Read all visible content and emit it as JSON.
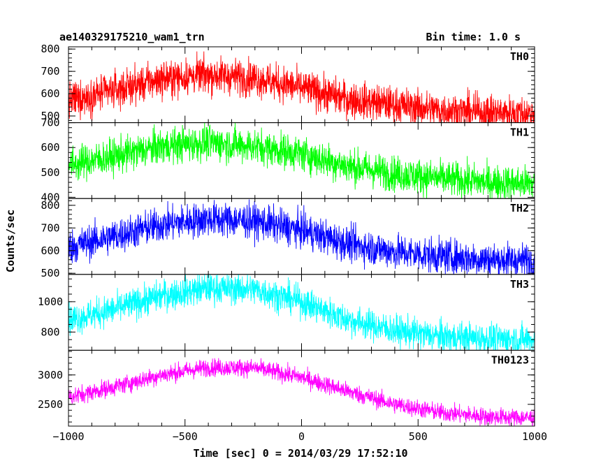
{
  "chart_data": {
    "type": "line",
    "title": "ae140329175210_wam1_trn",
    "bin_time_label": "Bin time: 1.0 s",
    "xlabel": "Time [sec] 0 = 2014/03/29 17:52:10",
    "ylabel": "Counts/sec",
    "xlim": [
      -1000,
      1000
    ],
    "x_ticks": [
      -1000,
      -500,
      0,
      500,
      1000
    ],
    "grid": false,
    "panels": [
      {
        "name": "TH0",
        "color": "#ff0000",
        "ylim": [
          470,
          810
        ],
        "y_ticks": [
          500,
          600,
          700,
          800
        ],
        "y_tick_labels": [
          "500",
          "600",
          "700",
          "800"
        ],
        "noise": 40,
        "trend": {
          "x": [
            -1000,
            -800,
            -600,
            -400,
            -200,
            0,
            200,
            400,
            600,
            800,
            1000
          ],
          "y": [
            570,
            615,
            665,
            685,
            670,
            625,
            575,
            550,
            525,
            515,
            510
          ]
        }
      },
      {
        "name": "TH1",
        "color": "#00ff00",
        "ylim": [
          395,
          700
        ],
        "y_ticks": [
          400,
          500,
          600,
          700
        ],
        "y_tick_labels": [
          "400",
          "500",
          "600",
          "700"
        ],
        "noise": 35,
        "trend": {
          "x": [
            -1000,
            -800,
            -600,
            -400,
            -200,
            0,
            200,
            400,
            600,
            800,
            1000
          ],
          "y": [
            530,
            565,
            605,
            620,
            605,
            575,
            525,
            495,
            475,
            460,
            455
          ]
        }
      },
      {
        "name": "TH2",
        "color": "#0000ff",
        "ylim": [
          495,
          830
        ],
        "y_ticks": [
          500,
          600,
          700,
          800
        ],
        "y_tick_labels": [
          "500",
          "600",
          "700",
          "800"
        ],
        "noise": 38,
        "trend": {
          "x": [
            -1000,
            -800,
            -600,
            -400,
            -200,
            0,
            200,
            400,
            600,
            800,
            1000
          ],
          "y": [
            615,
            665,
            715,
            740,
            730,
            690,
            630,
            595,
            575,
            560,
            555
          ]
        }
      },
      {
        "name": "TH3",
        "color": "#00ffff",
        "ylim": [
          680,
          1180
        ],
        "y_ticks": [
          800,
          1000
        ],
        "y_tick_labels": [
          "800",
          "1000"
        ],
        "noise": 50,
        "trend": {
          "x": [
            -1000,
            -800,
            -600,
            -400,
            -200,
            0,
            200,
            400,
            600,
            800,
            1000
          ],
          "y": [
            880,
            950,
            1040,
            1090,
            1080,
            1000,
            880,
            810,
            770,
            755,
            750
          ]
        }
      },
      {
        "name": "TH0123",
        "color": "#ff00ff",
        "ylim": [
          2130,
          3420
        ],
        "y_ticks": [
          2500,
          3000
        ],
        "y_tick_labels": [
          "2500",
          "3000"
        ],
        "noise": 75,
        "trend": {
          "x": [
            -1000,
            -800,
            -600,
            -400,
            -200,
            0,
            200,
            400,
            600,
            800,
            1000
          ],
          "y": [
            2620,
            2800,
            3000,
            3130,
            3120,
            2960,
            2720,
            2500,
            2360,
            2290,
            2270
          ]
        }
      }
    ]
  }
}
